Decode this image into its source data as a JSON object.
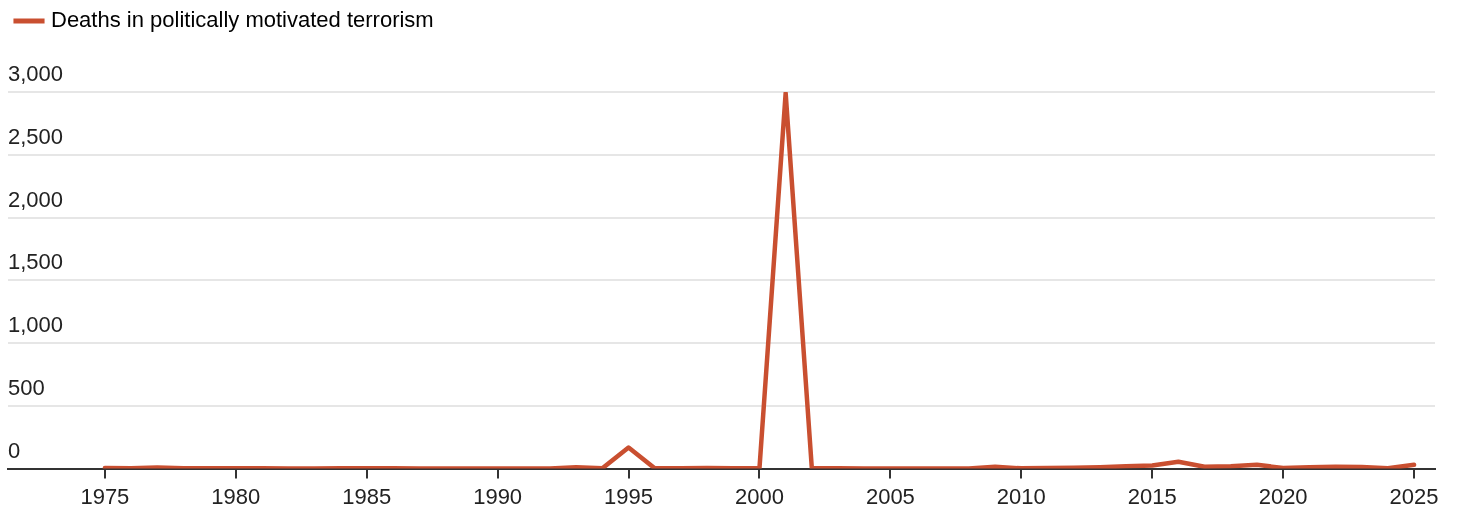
{
  "chart_data": {
    "type": "line",
    "x": [
      1975,
      1976,
      1977,
      1978,
      1979,
      1980,
      1981,
      1982,
      1983,
      1984,
      1985,
      1986,
      1987,
      1988,
      1989,
      1990,
      1991,
      1992,
      1993,
      1994,
      1995,
      1996,
      1997,
      1998,
      1999,
      2000,
      2001,
      2002,
      2003,
      2004,
      2005,
      2006,
      2007,
      2008,
      2009,
      2010,
      2011,
      2012,
      2013,
      2014,
      2015,
      2016,
      2017,
      2018,
      2019,
      2020,
      2021,
      2022,
      2023,
      2024,
      2025
    ],
    "series": [
      {
        "name": "Deaths in politically motivated terrorism",
        "color": "#c94f30",
        "values": [
          5,
          2,
          8,
          2,
          2,
          2,
          3,
          1,
          1,
          2,
          2,
          2,
          1,
          1,
          1,
          1,
          1,
          0,
          10,
          2,
          168,
          2,
          2,
          4,
          3,
          3,
          2990,
          2,
          2,
          1,
          1,
          1,
          1,
          1,
          15,
          2,
          4,
          6,
          10,
          18,
          25,
          55,
          15,
          18,
          30,
          5,
          10,
          15,
          12,
          2,
          30
        ]
      }
    ],
    "xlim": [
      1971.3,
      2025.8
    ],
    "xticks": [
      1975,
      1980,
      1985,
      1990,
      1995,
      2000,
      2005,
      2010,
      2015,
      2020,
      2025
    ],
    "ylim": [
      0,
      3000
    ],
    "yticks": [
      {
        "value": 0,
        "label": "0"
      },
      {
        "value": 500,
        "label": "500"
      },
      {
        "value": 1000,
        "label": "1,000"
      },
      {
        "value": 1500,
        "label": "1,500"
      },
      {
        "value": 2000,
        "label": "2,000"
      },
      {
        "value": 2500,
        "label": "2,500"
      },
      {
        "value": 3000,
        "label": "3,000"
      }
    ],
    "grid": "y",
    "legend": "top left",
    "marker": "none",
    "line_style": "solid"
  }
}
